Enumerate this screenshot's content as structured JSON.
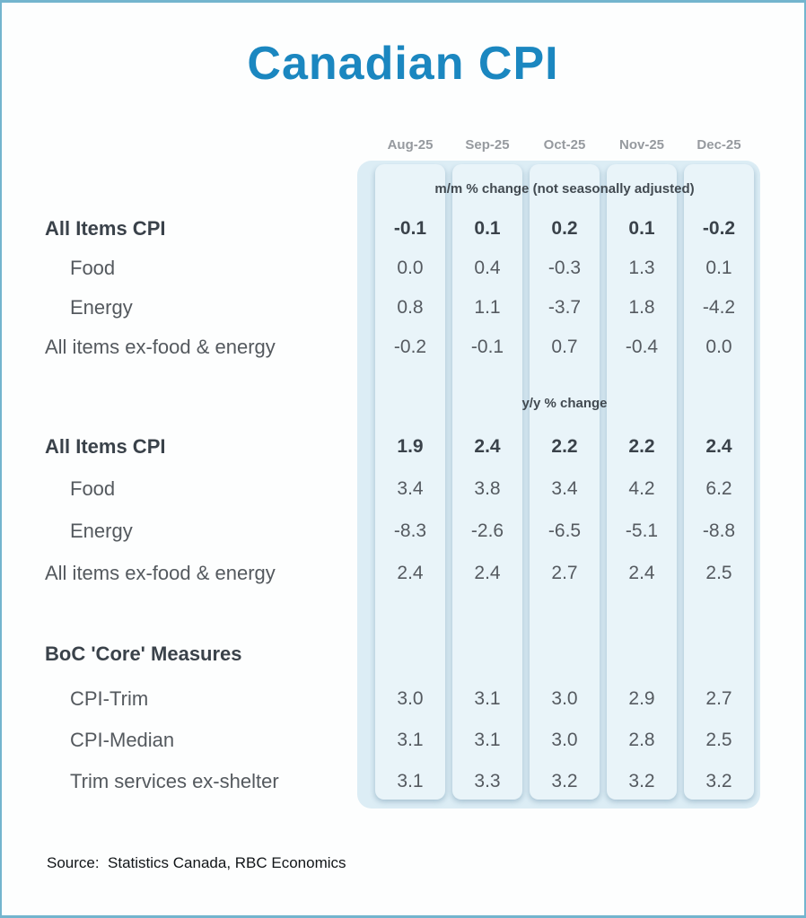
{
  "page": {
    "title": "Canadian CPI",
    "source": "Source:  Statistics Canada, RBC Economics"
  },
  "colors": {
    "title_blue": "#1b87c0",
    "panel_bg": "#dcedf5",
    "stripe_bg": "#e9f4f9",
    "page_border": "#73b5ce",
    "month_header_text": "#969a9f",
    "label_text": "#54595e",
    "bold_text": "#3a424a"
  },
  "chart_data": {
    "type": "table",
    "title": "Canadian CPI",
    "columns": [
      "Aug-25",
      "Sep-25",
      "Oct-25",
      "Nov-25",
      "Dec-25"
    ],
    "sections": [
      {
        "header": "m/m % change (not seasonally adjusted)",
        "rows": [
          {
            "label": "All Items CPI",
            "bold": true,
            "values": [
              "-0.1",
              "0.1",
              "0.2",
              "0.1",
              "-0.2"
            ]
          },
          {
            "label": "Food",
            "indent": true,
            "values": [
              "0.0",
              "0.4",
              "-0.3",
              "1.3",
              "0.1"
            ]
          },
          {
            "label": "Energy",
            "indent": true,
            "values": [
              "0.8",
              "1.1",
              "-3.7",
              "1.8",
              "-4.2"
            ]
          },
          {
            "label": "All items ex-food & energy",
            "values": [
              "-0.2",
              "-0.1",
              "0.7",
              "-0.4",
              "0.0"
            ]
          }
        ]
      },
      {
        "header": "y/y % change",
        "rows": [
          {
            "label": "All Items CPI",
            "bold": true,
            "values": [
              "1.9",
              "2.4",
              "2.2",
              "2.2",
              "2.4"
            ]
          },
          {
            "label": "Food",
            "indent": true,
            "values": [
              "3.4",
              "3.8",
              "3.4",
              "4.2",
              "6.2"
            ]
          },
          {
            "label": "Energy",
            "indent": true,
            "values": [
              "-8.3",
              "-2.6",
              "-6.5",
              "-5.1",
              "-8.8"
            ]
          },
          {
            "label": "All items ex-food & energy",
            "values": [
              "2.4",
              "2.4",
              "2.7",
              "2.4",
              "2.5"
            ]
          }
        ]
      },
      {
        "header": "BoC 'Core' Measures",
        "header_in_label_column": true,
        "rows": [
          {
            "label": "CPI-Trim",
            "indent": true,
            "values": [
              "3.0",
              "3.1",
              "3.0",
              "2.9",
              "2.7"
            ]
          },
          {
            "label": "CPI-Median",
            "indent": true,
            "values": [
              "3.1",
              "3.1",
              "3.0",
              "2.8",
              "2.5"
            ]
          },
          {
            "label": "Trim services ex-shelter",
            "indent": true,
            "values": [
              "3.1",
              "3.3",
              "3.2",
              "3.2",
              "3.2"
            ]
          }
        ]
      }
    ],
    "source": "Statistics Canada, RBC Economics"
  }
}
